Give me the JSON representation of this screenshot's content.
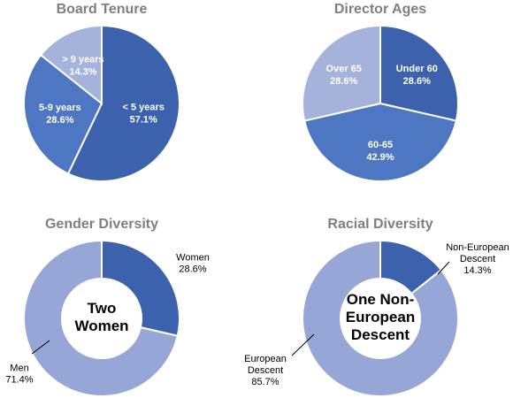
{
  "colors": {
    "dark": "#3c62ad",
    "medium": "#4e77c3",
    "light": "#96a6d7",
    "lighter": "#a5b3dc",
    "title": "#7f7f7f"
  },
  "chart_data": [
    {
      "type": "pie",
      "title": "Board Tenure",
      "slices": [
        {
          "label": "< 5 years",
          "value": 57.1,
          "value_label": "57.1%",
          "color": "#3c62ad"
        },
        {
          "label": "5-9 years",
          "value": 28.6,
          "value_label": "28.6%",
          "color": "#4e77c3"
        },
        {
          "label": "> 9 years",
          "value": 14.3,
          "value_label": "14.3%",
          "color": "#a5b3dc"
        }
      ]
    },
    {
      "type": "pie",
      "title": "Director Ages",
      "slices": [
        {
          "label": "Under 60",
          "value": 28.6,
          "value_label": "28.6%",
          "color": "#3c62ad"
        },
        {
          "label": "60-65",
          "value": 42.9,
          "value_label": "42.9%",
          "color": "#4e77c3"
        },
        {
          "label": "Over 65",
          "value": 28.6,
          "value_label": "28.6%",
          "color": "#a5b3dc"
        }
      ]
    },
    {
      "type": "pie",
      "subtype": "donut",
      "title": "Gender Diversity",
      "center_text": [
        "Two",
        "Women"
      ],
      "slices": [
        {
          "label": "Women",
          "value": 28.6,
          "value_label": "28.6%",
          "color": "#3c62ad"
        },
        {
          "label": "Men",
          "value": 71.4,
          "value_label": "71.4%",
          "color": "#96a6d7"
        }
      ]
    },
    {
      "type": "pie",
      "subtype": "donut",
      "title": "Racial Diversity",
      "center_text": [
        "One Non-",
        "European",
        "Descent"
      ],
      "slices": [
        {
          "label": "Non-European Descent",
          "label_lines": [
            "Non-European",
            "Descent"
          ],
          "value": 14.3,
          "value_label": "14.3%",
          "color": "#3c62ad"
        },
        {
          "label": "European Descent",
          "label_lines": [
            "European",
            "Descent"
          ],
          "value": 85.7,
          "value_label": "85.7%",
          "color": "#96a6d7"
        }
      ]
    }
  ]
}
